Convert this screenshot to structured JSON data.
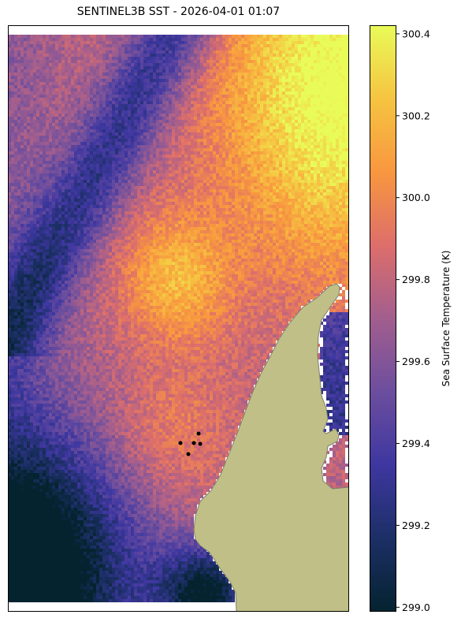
{
  "title": "SENTINEL3B SST - 2026-04-01 01:07",
  "colorbar": {
    "label": "Sea Surface Temperature (K)",
    "min": 298.99,
    "max": 300.42,
    "ticks": [
      "299.0",
      "299.2",
      "299.4",
      "299.6",
      "299.8",
      "300.0",
      "300.2",
      "300.4"
    ],
    "tick_values": [
      299.0,
      299.2,
      299.4,
      299.6,
      299.8,
      300.0,
      300.2,
      300.4
    ],
    "colormap": "thermal",
    "colormap_stops": [
      "#04232f",
      "#1c2f66",
      "#3e37a0",
      "#6c4e9e",
      "#a25e8e",
      "#dd6e6b",
      "#f8973f",
      "#f6c441",
      "#e9fb58"
    ]
  },
  "colors": {
    "land": "#bfbf87",
    "coast": "#7f7f6a",
    "nodata": "#ffffff"
  },
  "markers": {
    "color": "#000000",
    "count": 5
  }
}
